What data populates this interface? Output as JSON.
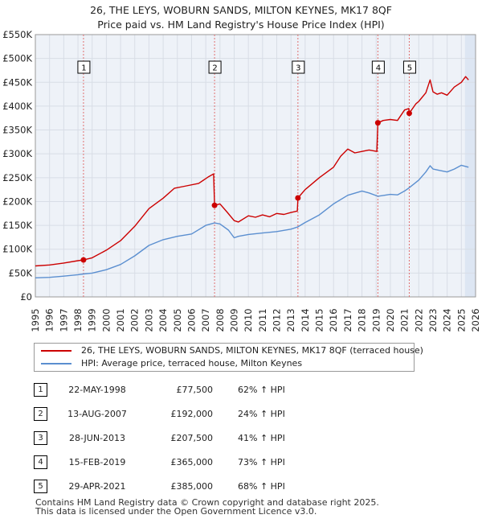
{
  "title_line1": "26, THE LEYS, WOBURN SANDS, MILTON KEYNES, MK17 8QF",
  "title_line2": "Price paid vs. HM Land Registry's House Price Index (HPI)",
  "legend": {
    "property_label": "26, THE LEYS, WOBURN SANDS, MILTON KEYNES, MK17 8QF (terraced house)",
    "hpi_label": "HPI: Average price, terraced house, Milton Keynes"
  },
  "colors": {
    "property": "#cc0000",
    "hpi": "#5b8fd0",
    "grid": "#d8dde6",
    "plot_bg": "#eef2f8",
    "shade": "#dde6f3",
    "sale_line": "#e07070"
  },
  "chart_data": {
    "type": "line",
    "title": "Price paid vs. HM Land Registry's House Price Index (HPI)",
    "xlim": [
      1995,
      2026
    ],
    "ylim": [
      0,
      550000
    ],
    "y_ticks": [
      0,
      50000,
      100000,
      150000,
      200000,
      250000,
      300000,
      350000,
      400000,
      450000,
      500000,
      550000
    ],
    "y_tick_labels": [
      "£0",
      "£50K",
      "£100K",
      "£150K",
      "£200K",
      "£250K",
      "£300K",
      "£350K",
      "£400K",
      "£450K",
      "£500K",
      "£550K"
    ],
    "x_ticks": [
      1995,
      1996,
      1997,
      1998,
      1999,
      2000,
      2001,
      2002,
      2003,
      2004,
      2005,
      2006,
      2007,
      2008,
      2009,
      2010,
      2011,
      2012,
      2013,
      2014,
      2015,
      2016,
      2017,
      2018,
      2019,
      2020,
      2021,
      2022,
      2023,
      2024,
      2025,
      2026
    ],
    "x_tick_labels": [
      "1995",
      "1996",
      "1997",
      "1998",
      "1999",
      "2000",
      "2001",
      "2002",
      "2003",
      "2004",
      "2005",
      "2006",
      "2007",
      "2008",
      "2009",
      "2010",
      "2011",
      "2012",
      "2013",
      "2014",
      "2015",
      "2016",
      "2017",
      "2018",
      "2019",
      "2020",
      "2021",
      "2022",
      "2023",
      "2024",
      "2025",
      "2026"
    ],
    "future_shade_from": 2025.25,
    "series": [
      {
        "name": "26, THE LEYS, WOBURN SANDS, MILTON KEYNES, MK17 8QF (terraced house)",
        "x": [
          1995.0,
          1996.0,
          1997.0,
          1998.0,
          1998.39,
          1999.0,
          2000.0,
          2001.0,
          2002.0,
          2003.0,
          2004.0,
          2004.8,
          2005.5,
          2006.5,
          2007.2,
          2007.55,
          2007.62,
          2008.0,
          2008.5,
          2009.0,
          2009.3,
          2010.0,
          2010.5,
          2011.0,
          2011.5,
          2012.0,
          2012.5,
          2013.0,
          2013.45,
          2013.49,
          2014.0,
          2015.0,
          2016.0,
          2016.5,
          2017.0,
          2017.5,
          2018.0,
          2018.5,
          2019.05,
          2019.12,
          2019.5,
          2020.0,
          2020.5,
          2021.0,
          2021.3,
          2021.33,
          2021.8,
          2022.0,
          2022.5,
          2022.8,
          2023.0,
          2023.3,
          2023.6,
          2024.0,
          2024.5,
          2025.0,
          2025.3,
          2025.5
        ],
        "values": [
          65000,
          67000,
          71000,
          76000,
          77500,
          82000,
          98000,
          118000,
          148000,
          185000,
          207000,
          228000,
          232000,
          238000,
          252000,
          258000,
          192000,
          195000,
          178000,
          160000,
          157000,
          170000,
          167000,
          172000,
          168000,
          175000,
          173000,
          177000,
          180000,
          207500,
          225000,
          250000,
          272000,
          295000,
          310000,
          302000,
          305000,
          308000,
          305000,
          365000,
          370000,
          372000,
          370000,
          392000,
          395000,
          385000,
          405000,
          410000,
          428000,
          455000,
          430000,
          425000,
          428000,
          423000,
          440000,
          450000,
          462000,
          455000
        ]
      },
      {
        "name": "HPI: Average price, terraced house, Milton Keynes",
        "x": [
          1995.0,
          1996.0,
          1997.0,
          1998.0,
          1998.39,
          1999.0,
          2000.0,
          2001.0,
          2002.0,
          2003.0,
          2004.0,
          2005.0,
          2006.0,
          2007.0,
          2007.62,
          2008.0,
          2008.6,
          2009.0,
          2009.3,
          2010.0,
          2011.0,
          2012.0,
          2013.0,
          2013.49,
          2014.0,
          2015.0,
          2016.0,
          2017.0,
          2018.0,
          2018.5,
          2019.12,
          2020.0,
          2020.5,
          2021.0,
          2021.33,
          2022.0,
          2022.5,
          2022.8,
          2023.0,
          2023.5,
          2024.0,
          2024.5,
          2025.0,
          2025.5
        ],
        "values": [
          40000,
          41000,
          43500,
          46500,
          48000,
          50000,
          57000,
          68000,
          86000,
          108000,
          120000,
          127000,
          132000,
          150000,
          155000,
          153000,
          140000,
          124000,
          127000,
          131000,
          134000,
          137000,
          142000,
          147000,
          156000,
          172000,
          195000,
          213000,
          222000,
          218000,
          211000,
          215000,
          214000,
          222000,
          229000,
          245000,
          262000,
          275000,
          268000,
          265000,
          262000,
          268000,
          276000,
          272000
        ]
      }
    ],
    "sales": [
      {
        "label": "1",
        "x": 1998.39,
        "value": 77500
      },
      {
        "label": "2",
        "x": 2007.62,
        "value": 192000
      },
      {
        "label": "3",
        "x": 2013.49,
        "value": 207500
      },
      {
        "label": "4",
        "x": 2019.12,
        "value": 365000
      },
      {
        "label": "5",
        "x": 2021.33,
        "value": 385000
      }
    ]
  },
  "sales_table": [
    {
      "num": "1",
      "date": "22-MAY-1998",
      "price": "£77,500",
      "pct": "62% ↑ HPI"
    },
    {
      "num": "2",
      "date": "13-AUG-2007",
      "price": "£192,000",
      "pct": "24% ↑ HPI"
    },
    {
      "num": "3",
      "date": "28-JUN-2013",
      "price": "£207,500",
      "pct": "41% ↑ HPI"
    },
    {
      "num": "4",
      "date": "15-FEB-2019",
      "price": "£365,000",
      "pct": "73% ↑ HPI"
    },
    {
      "num": "5",
      "date": "29-APR-2021",
      "price": "£385,000",
      "pct": "68% ↑ HPI"
    }
  ],
  "footer": {
    "line1": "Contains HM Land Registry data © Crown copyright and database right 2025.",
    "line2": "This data is licensed under the Open Government Licence v3.0."
  }
}
